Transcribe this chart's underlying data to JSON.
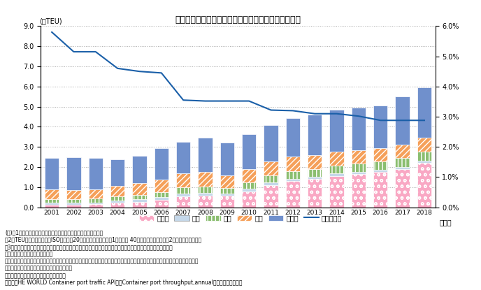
{
  "years": [
    2001,
    2002,
    2003,
    2004,
    2005,
    2006,
    2007,
    2008,
    2009,
    2010,
    2011,
    2012,
    2013,
    2014,
    2015,
    2016,
    2017,
    2018
  ],
  "asia": [
    0.12,
    0.12,
    0.15,
    0.22,
    0.28,
    0.38,
    0.55,
    0.58,
    0.57,
    0.8,
    1.1,
    1.3,
    1.4,
    1.55,
    1.65,
    1.75,
    1.9,
    2.2
  ],
  "japan": [
    0.1,
    0.1,
    0.1,
    0.11,
    0.11,
    0.12,
    0.13,
    0.13,
    0.12,
    0.13,
    0.13,
    0.13,
    0.13,
    0.13,
    0.12,
    0.12,
    0.12,
    0.12
  ],
  "north_america": [
    0.18,
    0.18,
    0.2,
    0.22,
    0.24,
    0.27,
    0.32,
    0.32,
    0.28,
    0.32,
    0.36,
    0.38,
    0.38,
    0.4,
    0.4,
    0.4,
    0.43,
    0.45
  ],
  "europe": [
    0.48,
    0.45,
    0.45,
    0.52,
    0.56,
    0.6,
    0.68,
    0.72,
    0.6,
    0.65,
    0.7,
    0.7,
    0.7,
    0.7,
    0.68,
    0.68,
    0.68,
    0.68
  ],
  "others": [
    1.58,
    1.65,
    1.55,
    1.33,
    1.36,
    1.58,
    1.57,
    1.7,
    1.65,
    1.75,
    1.8,
    1.92,
    2.0,
    2.07,
    2.1,
    2.12,
    2.38,
    2.5
  ],
  "japan_share": [
    5.8,
    5.15,
    5.15,
    4.6,
    4.5,
    4.45,
    3.55,
    3.52,
    3.52,
    3.52,
    3.22,
    3.2,
    3.1,
    3.1,
    3.02,
    2.88,
    2.88,
    2.88
  ],
  "title": "世界の港湾におけるコンテナ取扱個数と日本シェア率",
  "ylabel_left": "(億TEU)",
  "legend_asia": "アジア",
  "legend_japan": "日本",
  "legend_north_america": "北米",
  "legend_europe": "欧州",
  "legend_others": "その他",
  "legend_share": "日本シェア",
  "color_asia": "#F9A8C4",
  "color_japan": "#C5D8EA",
  "color_north_america": "#8BBE70",
  "color_europe": "#F5A05A",
  "color_others": "#7090CC",
  "color_share_line": "#1A5FA8",
  "note_line1": "(注)、1　主要港湾の合計値で、すべてを網羅するものではない。",
  "note_line2": "　2　TEU：国際標準規格（ISO規格）の20フィート・コンテナを1として、 40フィート・コンテナを2として計算する単位",
  "note_line3": "　3　地域区分　アジア：韓国、中国、香港、台湾、タイ、フィリピン、マレーシア、シンガポール、インドネシア",
  "note_line4": "　　　　　北　米：米国、カナダ",
  "note_line5": "　　　　　欧　州：英国、オランダ、ドイツ、イタリア、スペイン、ベルギー、フランス、ギリシャ、アイルランド、スウェーデン、",
  "note_line6": "　　　　　　　　　フィンランド、デンマーク",
  "note_line7": "　　　　　その他：上記以外（日本除く）",
  "source": "資料）　HE WORLD Container port traffic API及びContainer port throughput,annualより国土交通省作成"
}
